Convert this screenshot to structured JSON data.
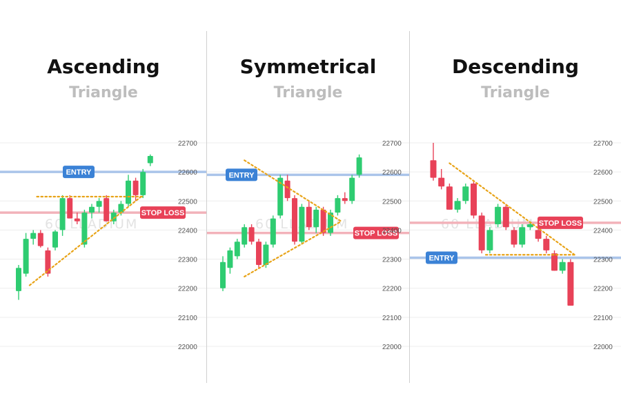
{
  "colors": {
    "up": "#2ecc71",
    "down": "#e84258",
    "entry": "#3b82d6",
    "entry_line": "#aac4ea",
    "stop": "#e84258",
    "stop_line": "#f2b2ba",
    "trend": "#e8a317",
    "grid": "#ededed"
  },
  "watermark": "60 LLADIUM",
  "panels": [
    {
      "title": "Ascending",
      "subtitle": "Triangle"
    },
    {
      "title": "Symmetrical",
      "subtitle": "Triangle"
    },
    {
      "title": "Descending",
      "subtitle": "Triangle"
    }
  ],
  "chart_data": [
    {
      "type": "candlestick",
      "title": "Ascending",
      "subtitle": "Triangle",
      "y_ticks": [
        22000,
        22100,
        22200,
        22300,
        22400,
        22500,
        22600,
        22700
      ],
      "ylim": [
        21900,
        22750
      ],
      "grid": true,
      "levels": [
        {
          "label": "ENTRY",
          "value": 22600,
          "kind": "entry"
        },
        {
          "label": "STOP LOSS",
          "value": 22460,
          "kind": "stop"
        }
      ],
      "trendlines": [
        {
          "from": [
            1.5,
            22210
          ],
          "to": [
            17,
            22520
          ]
        },
        {
          "from": [
            2.5,
            22515
          ],
          "to": [
            17,
            22515
          ]
        }
      ],
      "candles": [
        {
          "o": 22190,
          "h": 22280,
          "l": 22160,
          "c": 22270
        },
        {
          "o": 22250,
          "h": 22390,
          "l": 22240,
          "c": 22370
        },
        {
          "o": 22370,
          "h": 22400,
          "l": 22350,
          "c": 22390
        },
        {
          "o": 22390,
          "h": 22400,
          "l": 22340,
          "c": 22345
        },
        {
          "o": 22330,
          "h": 22340,
          "l": 22240,
          "c": 22250
        },
        {
          "o": 22340,
          "h": 22400,
          "l": 22330,
          "c": 22395
        },
        {
          "o": 22400,
          "h": 22520,
          "l": 22380,
          "c": 22510
        },
        {
          "o": 22510,
          "h": 22520,
          "l": 22440,
          "c": 22440
        },
        {
          "o": 22440,
          "h": 22460,
          "l": 22420,
          "c": 22430
        },
        {
          "o": 22350,
          "h": 22470,
          "l": 22340,
          "c": 22460
        },
        {
          "o": 22460,
          "h": 22490,
          "l": 22440,
          "c": 22480
        },
        {
          "o": 22480,
          "h": 22510,
          "l": 22460,
          "c": 22500
        },
        {
          "o": 22510,
          "h": 22520,
          "l": 22430,
          "c": 22430
        },
        {
          "o": 22430,
          "h": 22470,
          "l": 22420,
          "c": 22460
        },
        {
          "o": 22460,
          "h": 22500,
          "l": 22450,
          "c": 22490
        },
        {
          "o": 22490,
          "h": 22590,
          "l": 22480,
          "c": 22570
        },
        {
          "o": 22570,
          "h": 22580,
          "l": 22500,
          "c": 22520
        },
        {
          "o": 22520,
          "h": 22610,
          "l": 22510,
          "c": 22600
        },
        {
          "o": 22630,
          "h": 22660,
          "l": 22620,
          "c": 22655
        }
      ]
    },
    {
      "type": "candlestick",
      "title": "Symmetrical",
      "subtitle": "Triangle",
      "y_ticks": [
        22000,
        22100,
        22200,
        22300,
        22400,
        22500,
        22600,
        22700
      ],
      "ylim": [
        21900,
        22750
      ],
      "grid": true,
      "levels": [
        {
          "label": "ENTRY",
          "value": 22590,
          "kind": "entry"
        },
        {
          "label": "STOP LOSS",
          "value": 22390,
          "kind": "stop"
        }
      ],
      "trendlines": [
        {
          "from": [
            3,
            22640
          ],
          "to": [
            16.5,
            22430
          ]
        },
        {
          "from": [
            3,
            22240
          ],
          "to": [
            16.5,
            22430
          ]
        }
      ],
      "candles": [
        {
          "o": 22200,
          "h": 22310,
          "l": 22190,
          "c": 22290
        },
        {
          "o": 22270,
          "h": 22340,
          "l": 22250,
          "c": 22330
        },
        {
          "o": 22310,
          "h": 22370,
          "l": 22300,
          "c": 22360
        },
        {
          "o": 22350,
          "h": 22420,
          "l": 22340,
          "c": 22410
        },
        {
          "o": 22410,
          "h": 22420,
          "l": 22350,
          "c": 22360
        },
        {
          "o": 22360,
          "h": 22370,
          "l": 22270,
          "c": 22280
        },
        {
          "o": 22280,
          "h": 22360,
          "l": 22270,
          "c": 22350
        },
        {
          "o": 22350,
          "h": 22450,
          "l": 22340,
          "c": 22440
        },
        {
          "o": 22450,
          "h": 22590,
          "l": 22440,
          "c": 22580
        },
        {
          "o": 22570,
          "h": 22590,
          "l": 22500,
          "c": 22510
        },
        {
          "o": 22510,
          "h": 22520,
          "l": 22350,
          "c": 22360
        },
        {
          "o": 22360,
          "h": 22490,
          "l": 22350,
          "c": 22480
        },
        {
          "o": 22480,
          "h": 22500,
          "l": 22400,
          "c": 22410
        },
        {
          "o": 22410,
          "h": 22480,
          "l": 22390,
          "c": 22470
        },
        {
          "o": 22470,
          "h": 22480,
          "l": 22380,
          "c": 22390
        },
        {
          "o": 22390,
          "h": 22470,
          "l": 22380,
          "c": 22460
        },
        {
          "o": 22460,
          "h": 22520,
          "l": 22450,
          "c": 22510
        },
        {
          "o": 22510,
          "h": 22530,
          "l": 22490,
          "c": 22500
        },
        {
          "o": 22500,
          "h": 22590,
          "l": 22490,
          "c": 22580
        },
        {
          "o": 22590,
          "h": 22660,
          "l": 22580,
          "c": 22650
        }
      ]
    },
    {
      "type": "candlestick",
      "title": "Descending",
      "subtitle": "Triangle",
      "y_ticks": [
        22000,
        22100,
        22200,
        22300,
        22400,
        22500,
        22600,
        22700
      ],
      "ylim": [
        21900,
        22750
      ],
      "grid": true,
      "levels": [
        {
          "label": "STOP LOSS",
          "value": 22425,
          "kind": "stop"
        },
        {
          "label": "ENTRY",
          "value": 22305,
          "kind": "entry"
        }
      ],
      "trendlines": [
        {
          "from": [
            2,
            22630
          ],
          "to": [
            17.5,
            22315
          ]
        },
        {
          "from": [
            6.5,
            22315
          ],
          "to": [
            17.5,
            22315
          ]
        }
      ],
      "candles": [
        {
          "o": 22640,
          "h": 22700,
          "l": 22570,
          "c": 22580
        },
        {
          "o": 22580,
          "h": 22610,
          "l": 22540,
          "c": 22550
        },
        {
          "o": 22550,
          "h": 22560,
          "l": 22470,
          "c": 22470
        },
        {
          "o": 22470,
          "h": 22510,
          "l": 22460,
          "c": 22500
        },
        {
          "o": 22500,
          "h": 22560,
          "l": 22490,
          "c": 22550
        },
        {
          "o": 22560,
          "h": 22570,
          "l": 22440,
          "c": 22450
        },
        {
          "o": 22450,
          "h": 22460,
          "l": 22320,
          "c": 22330
        },
        {
          "o": 22330,
          "h": 22410,
          "l": 22320,
          "c": 22400
        },
        {
          "o": 22420,
          "h": 22490,
          "l": 22410,
          "c": 22480
        },
        {
          "o": 22480,
          "h": 22490,
          "l": 22400,
          "c": 22410
        },
        {
          "o": 22400,
          "h": 22410,
          "l": 22340,
          "c": 22350
        },
        {
          "o": 22350,
          "h": 22420,
          "l": 22340,
          "c": 22410
        },
        {
          "o": 22410,
          "h": 22430,
          "l": 22400,
          "c": 22420
        },
        {
          "o": 22400,
          "h": 22420,
          "l": 22360,
          "c": 22370
        },
        {
          "o": 22370,
          "h": 22380,
          "l": 22320,
          "c": 22330
        },
        {
          "o": 22320,
          "h": 22330,
          "l": 22260,
          "c": 22260
        },
        {
          "o": 22260,
          "h": 22300,
          "l": 22250,
          "c": 22290
        },
        {
          "o": 22290,
          "h": 22300,
          "l": 22140,
          "c": 22140
        }
      ]
    }
  ]
}
